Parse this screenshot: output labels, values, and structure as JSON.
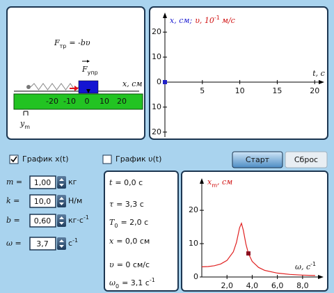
{
  "diagram": {
    "formula": {
      "lhs": "F",
      "lhs_sub": "тр",
      "rhs": "= -bυ"
    },
    "force_label": {
      "main": "F",
      "sub": "упр"
    },
    "axis_label": "x, см",
    "ruler_ticks": [
      -20,
      -10,
      0,
      10,
      20
    ],
    "marker_label": {
      "main": "y",
      "sub": "m"
    }
  },
  "graph_xt": {
    "y_title": {
      "x_part": "x, см;",
      "v_part": "υ, 10",
      "sup": "-1",
      "unit": "м/с"
    },
    "x_title": "t, с",
    "xlim": [
      0,
      21
    ],
    "ylim": [
      -22,
      27
    ],
    "xticks": [
      5,
      10,
      15,
      20
    ],
    "yticks": [
      {
        "value": -20,
        "label": "20"
      },
      {
        "value": -10,
        "label": "10"
      },
      0,
      10,
      20
    ],
    "points": {
      "x": [
        0
      ],
      "values": [
        0
      ]
    }
  },
  "controls": {
    "checkboxes": [
      {
        "label": "График x(t)",
        "checked": true
      },
      {
        "label": "График υ(t)",
        "checked": false
      }
    ],
    "buttons": [
      {
        "label": "Старт",
        "enabled": true
      },
      {
        "label": "Сброс",
        "enabled": false
      }
    ]
  },
  "params": [
    {
      "symbol": "m =",
      "value": "1,00",
      "unit": "кг"
    },
    {
      "symbol": "k =",
      "value": "10,0",
      "unit": "Н/м"
    },
    {
      "symbol": "b =",
      "value": "0,60",
      "unit": "кг·с",
      "unit_sup": "-1"
    },
    {
      "symbol": "ω =",
      "value": "3,7",
      "unit": "с",
      "unit_sup": "-1"
    }
  ],
  "readouts": [
    {
      "symbol": "t",
      "rest": "= 0,0 с"
    },
    {
      "symbol": "τ",
      "rest": "= 3,3 с"
    },
    {
      "symbol": "T",
      "sub": "0",
      "rest": "= 2,0 с"
    },
    {
      "symbol": "x",
      "rest": "= 0,0 см"
    },
    {
      "symbol": "υ",
      "rest": "= 0 см/с"
    },
    {
      "symbol": "ω",
      "sub": "0",
      "rest": "= 3,1 с",
      "sup": "-1"
    }
  ],
  "graph_res": {
    "y_title": {
      "main": "x",
      "sub": "m",
      "rest": ", см"
    },
    "x_title": {
      "main": "ω, с",
      "sup": "-1"
    },
    "xlim": [
      0,
      9.5
    ],
    "ylim": [
      0,
      29
    ],
    "xticks": [
      {
        "value": 2,
        "label": "2,0"
      },
      {
        "value": 4,
        "label": "4,0"
      },
      {
        "value": 6,
        "label": "6,0"
      },
      {
        "value": 8,
        "label": "8,0"
      }
    ],
    "yticks": [
      0,
      10,
      20
    ],
    "curve": {
      "x": [
        0,
        0.5,
        1,
        1.5,
        2,
        2.5,
        2.75,
        3,
        3.15,
        3.3,
        3.5,
        3.7,
        4,
        4.5,
        5,
        6,
        7,
        8,
        9
      ],
      "values": [
        3.04,
        3.12,
        3.37,
        3.9,
        4.97,
        7.53,
        10.33,
        14.76,
        16.08,
        14.0,
        9.88,
        7.06,
        4.7,
        2.87,
        1.99,
        1.16,
        0.78,
        0.56,
        0.43
      ]
    },
    "current": {
      "x": 3.7,
      "value": 7.06
    }
  }
}
